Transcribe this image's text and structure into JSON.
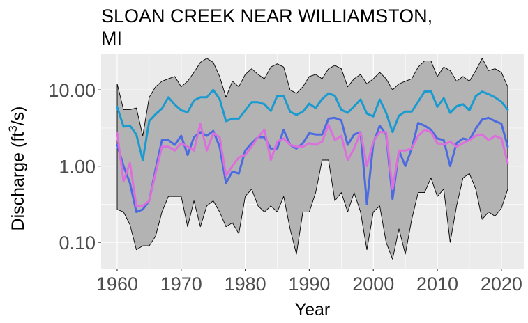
{
  "chart_data": {
    "type": "line",
    "title_lines": [
      "SLOAN CREEK NEAR WILLIAMSTON,",
      "MI"
    ],
    "xlabel": "Year",
    "ylabel": "Discharge (ft³/s)",
    "ylabel_parts": {
      "pre": "Discharge (ft",
      "sup": "3",
      "post": "/s)"
    },
    "y_scale": "log10",
    "xlim": [
      1957.5,
      2023.5
    ],
    "ylim": [
      0.045,
      30
    ],
    "x_ticks": [
      1960,
      1970,
      1980,
      1990,
      2000,
      2010,
      2020
    ],
    "x_tick_labels": [
      "1960",
      "1970",
      "1980",
      "1990",
      "2000",
      "2010",
      "2020"
    ],
    "y_ticks": [
      0.1,
      1,
      10
    ],
    "y_tick_labels": [
      "0.10",
      "1.00",
      "10.00"
    ],
    "grid": true,
    "legend": "none",
    "colors": {
      "panel": "#ebebeb",
      "grid": "#ffffff",
      "band_fill": "#b3b3b3",
      "band_stroke": "#000000",
      "mean_series": "#1a9bcf",
      "median_series": "#4d6be0",
      "third_series": "#dc6fdc"
    },
    "x": [
      1960,
      1961,
      1962,
      1963,
      1964,
      1965,
      1966,
      1967,
      1968,
      1969,
      1970,
      1971,
      1972,
      1973,
      1974,
      1975,
      1976,
      1977,
      1978,
      1979,
      1980,
      1981,
      1982,
      1983,
      1984,
      1985,
      1986,
      1987,
      1988,
      1989,
      1990,
      1991,
      1992,
      1993,
      1994,
      1995,
      1996,
      1997,
      1998,
      1999,
      2000,
      2001,
      2002,
      2003,
      2004,
      2005,
      2006,
      2007,
      2008,
      2009,
      2010,
      2011,
      2012,
      2013,
      2014,
      2015,
      2016,
      2017,
      2018,
      2019,
      2020,
      2021
    ],
    "band_upper": [
      12,
      5.5,
      5.5,
      5.8,
      2.5,
      8,
      11,
      13,
      14,
      15,
      11,
      13,
      17,
      23,
      26,
      23,
      15,
      8,
      13,
      11,
      16,
      19,
      16,
      14,
      20,
      22,
      20,
      10,
      9,
      11,
      15,
      16,
      14,
      19,
      21,
      19,
      11,
      14,
      16,
      12,
      14,
      17,
      14,
      10,
      12,
      13,
      14,
      20,
      24,
      24,
      15,
      20,
      18,
      13,
      15,
      13,
      18,
      26,
      18,
      19,
      17,
      11
    ],
    "band_lower": [
      0.27,
      0.25,
      0.17,
      0.08,
      0.09,
      0.09,
      0.12,
      0.25,
      0.4,
      0.4,
      0.4,
      0.16,
      0.35,
      0.16,
      0.3,
      0.35,
      0.25,
      0.16,
      0.18,
      0.13,
      0.4,
      0.5,
      0.3,
      0.25,
      0.3,
      0.25,
      0.4,
      0.15,
      0.07,
      0.25,
      0.25,
      0.45,
      1.2,
      1.2,
      0.35,
      0.45,
      0.25,
      0.45,
      0.25,
      0.08,
      0.25,
      0.3,
      0.1,
      0.06,
      0.15,
      0.07,
      0.2,
      0.45,
      0.45,
      0.7,
      0.4,
      0.5,
      0.1,
      0.3,
      0.7,
      0.8,
      0.5,
      0.2,
      0.25,
      0.22,
      0.28,
      0.5
    ],
    "series": [
      {
        "values": [
          6.0,
          3.3,
          3.4,
          2.6,
          1.2,
          3.9,
          4.8,
          5.7,
          8.0,
          6.4,
          5.4,
          5.1,
          7.3,
          8.0,
          8.0,
          10.0,
          7.6,
          3.9,
          4.2,
          4.2,
          5.4,
          6.9,
          6.9,
          6.5,
          5.3,
          8.4,
          8.3,
          5.2,
          4.7,
          5.2,
          6.6,
          5.8,
          7.6,
          9.0,
          8.4,
          5.5,
          5.0,
          6.1,
          7.5,
          4.9,
          4.5,
          7.5,
          5.0,
          2.8,
          4.6,
          5.2,
          5.2,
          7.0,
          9.5,
          9.6,
          6.0,
          7.8,
          5.0,
          6.1,
          6.5,
          5.4,
          8.3,
          9.5,
          8.8,
          8.0,
          7.0,
          5.5
        ]
      },
      {
        "values": [
          1.9,
          1.0,
          0.6,
          0.25,
          0.27,
          0.35,
          0.9,
          2.2,
          2.2,
          1.9,
          2.5,
          1.4,
          2.4,
          2.8,
          2.5,
          2.9,
          1.8,
          0.6,
          0.85,
          0.8,
          1.6,
          2.0,
          2.4,
          2.4,
          1.7,
          1.7,
          3.0,
          1.9,
          1.7,
          2.0,
          2.7,
          2.6,
          2.6,
          4.2,
          4.3,
          4.0,
          1.9,
          2.6,
          2.8,
          0.32,
          2.0,
          3.4,
          2.6,
          0.37,
          1.6,
          1.0,
          1.7,
          3.7,
          3.4,
          3.0,
          2.3,
          2.2,
          1.0,
          2.0,
          2.3,
          2.2,
          3.1,
          4.1,
          4.3,
          3.9,
          3.6,
          1.8
        ]
      },
      {
        "values": [
          2.7,
          0.63,
          1.1,
          0.3,
          0.3,
          0.35,
          0.8,
          1.8,
          1.8,
          1.6,
          2.0,
          1.8,
          1.6,
          3.6,
          1.6,
          2.7,
          2.4,
          0.75,
          1.0,
          1.3,
          1.4,
          1.8,
          2.4,
          3.0,
          1.2,
          2.1,
          2.3,
          1.9,
          1.8,
          1.8,
          2.0,
          1.9,
          2.1,
          3.5,
          2.2,
          2.5,
          1.2,
          1.7,
          2.8,
          1.0,
          2.1,
          2.8,
          2.8,
          0.5,
          1.6,
          1.6,
          1.7,
          2.5,
          3.0,
          2.8,
          2.0,
          1.9,
          2.1,
          1.8,
          2.0,
          2.2,
          2.5,
          2.6,
          2.2,
          2.5,
          2.3,
          1.1
        ]
      }
    ]
  }
}
